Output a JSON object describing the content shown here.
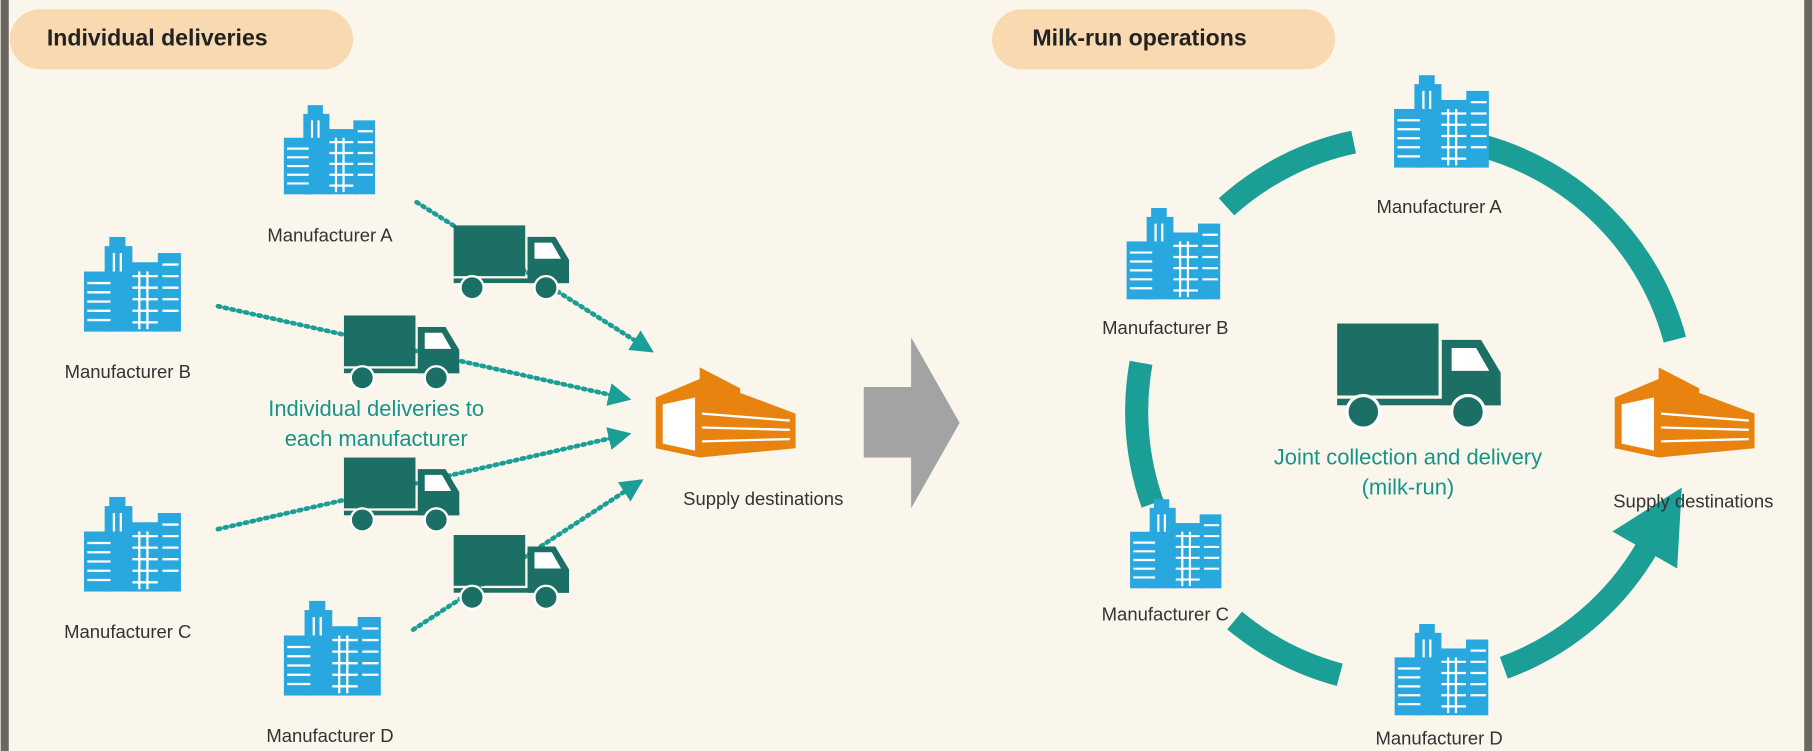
{
  "left_panel": {
    "title": "Individual deliveries",
    "manufacturers": [
      "Manufacturer A",
      "Manufacturer B",
      "Manufacturer C",
      "Manufacturer D"
    ],
    "caption": [
      "Individual deliveries to",
      "each manufacturer"
    ],
    "destination": "Supply destinations"
  },
  "right_panel": {
    "title": "Milk-run operations",
    "manufacturers": [
      "Manufacturer A",
      "Manufacturer B",
      "Manufacturer C",
      "Manufacturer D"
    ],
    "caption": [
      "Joint collection and delivery",
      "(milk-run)"
    ],
    "destination": "Supply destinations"
  }
}
